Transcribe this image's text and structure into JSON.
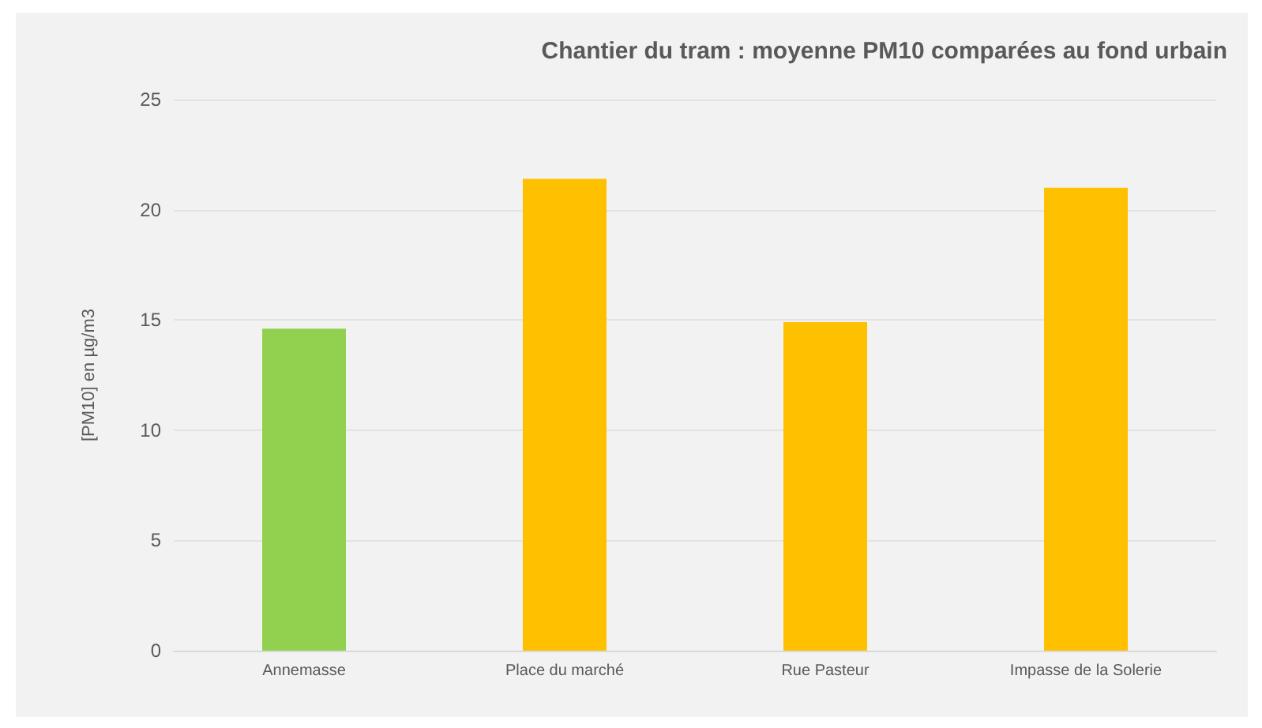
{
  "chart_data": {
    "type": "bar",
    "title": "Chantier du tram : moyenne PM10 comparées au fond urbain",
    "ylabel": "[PM10] en µg/m3",
    "categories": [
      "Annemasse",
      "Place du marché",
      "Rue Pasteur",
      "Impasse de la Solerie"
    ],
    "values": [
      14.6,
      21.4,
      14.9,
      21.0
    ],
    "colors": [
      "#92d050",
      "#ffc000",
      "#ffc000",
      "#ffc000"
    ],
    "ylim": [
      0,
      25
    ],
    "yticks": [
      0,
      5,
      10,
      15,
      20,
      25
    ],
    "grid": "y"
  }
}
